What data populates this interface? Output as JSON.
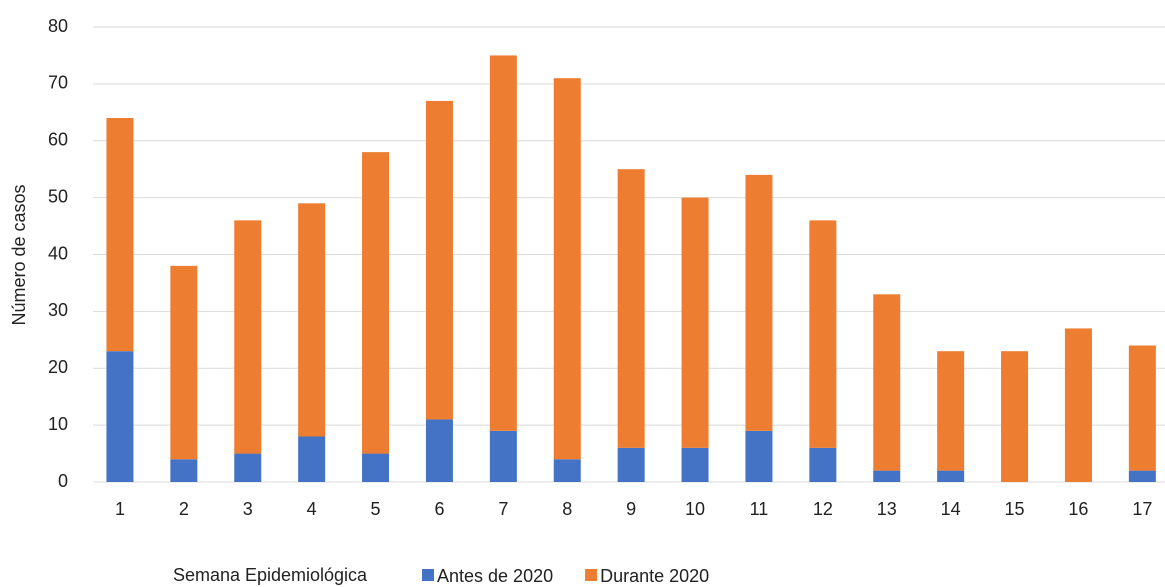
{
  "chart_data": {
    "type": "stacked_bar",
    "x_label": "Semana Epidemiológica",
    "y_label": "Número de casos",
    "categories": [
      "1",
      "2",
      "3",
      "4",
      "5",
      "6",
      "7",
      "8",
      "9",
      "10",
      "11",
      "12",
      "13",
      "14",
      "15",
      "16",
      "17"
    ],
    "series": [
      {
        "name": "Antes de 2020",
        "color": "#4472c4",
        "values": [
          23,
          4,
          5,
          8,
          5,
          11,
          9,
          4,
          6,
          6,
          9,
          6,
          2,
          2,
          0,
          0,
          2
        ]
      },
      {
        "name": "Durante 2020",
        "color": "#ed7d31",
        "values": [
          41,
          34,
          41,
          41,
          53,
          56,
          66,
          67,
          49,
          44,
          45,
          40,
          31,
          21,
          23,
          27,
          22
        ]
      }
    ],
    "ylim": [
      0,
      80
    ],
    "yticks": [
      0,
      10,
      20,
      30,
      40,
      50,
      60,
      70,
      80
    ],
    "grid": true
  }
}
